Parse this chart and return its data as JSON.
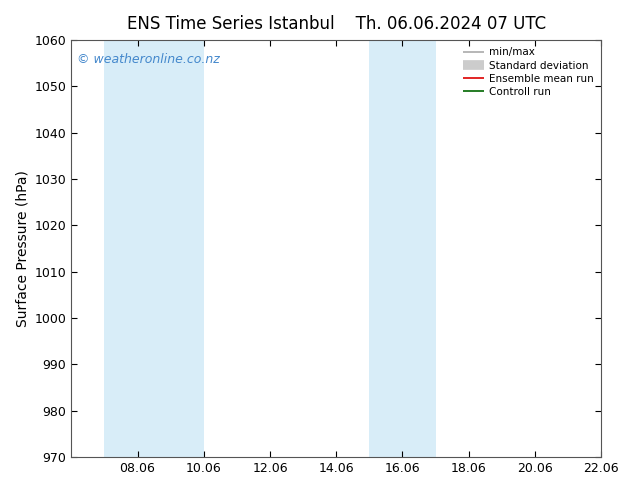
{
  "title_left": "ENS Time Series Istanbul",
  "title_right": "Th. 06.06.2024 07 UTC",
  "ylabel": "Surface Pressure (hPa)",
  "ylim": [
    970,
    1060
  ],
  "yticks": [
    970,
    980,
    990,
    1000,
    1010,
    1020,
    1030,
    1040,
    1050,
    1060
  ],
  "xlim": [
    6.06,
    22.06
  ],
  "xticks": [
    8.06,
    10.06,
    12.06,
    14.06,
    16.06,
    18.06,
    20.06,
    22.06
  ],
  "xticklabels": [
    "08.06",
    "10.06",
    "12.06",
    "14.06",
    "16.06",
    "18.06",
    "20.06",
    "22.06"
  ],
  "shaded_regions": [
    {
      "xmin": 7.06,
      "xmax": 10.06,
      "color": "#d8edf8"
    },
    {
      "xmin": 15.06,
      "xmax": 17.06,
      "color": "#d8edf8"
    }
  ],
  "watermark": "© weatheronline.co.nz",
  "watermark_color": "#4488cc",
  "background_color": "#ffffff",
  "plot_bg_color": "#ffffff",
  "legend_items": [
    {
      "label": "min/max",
      "color": "#aaaaaa",
      "linewidth": 1.2,
      "type": "line"
    },
    {
      "label": "Standard deviation",
      "color": "#cccccc",
      "linewidth": 7,
      "type": "line"
    },
    {
      "label": "Ensemble mean run",
      "color": "#dd0000",
      "linewidth": 1.2,
      "type": "line"
    },
    {
      "label": "Controll run",
      "color": "#006600",
      "linewidth": 1.2,
      "type": "line"
    }
  ],
  "title_fontsize": 12,
  "tick_fontsize": 9,
  "label_fontsize": 10,
  "watermark_fontsize": 9,
  "figsize": [
    6.34,
    4.9
  ],
  "dpi": 100
}
